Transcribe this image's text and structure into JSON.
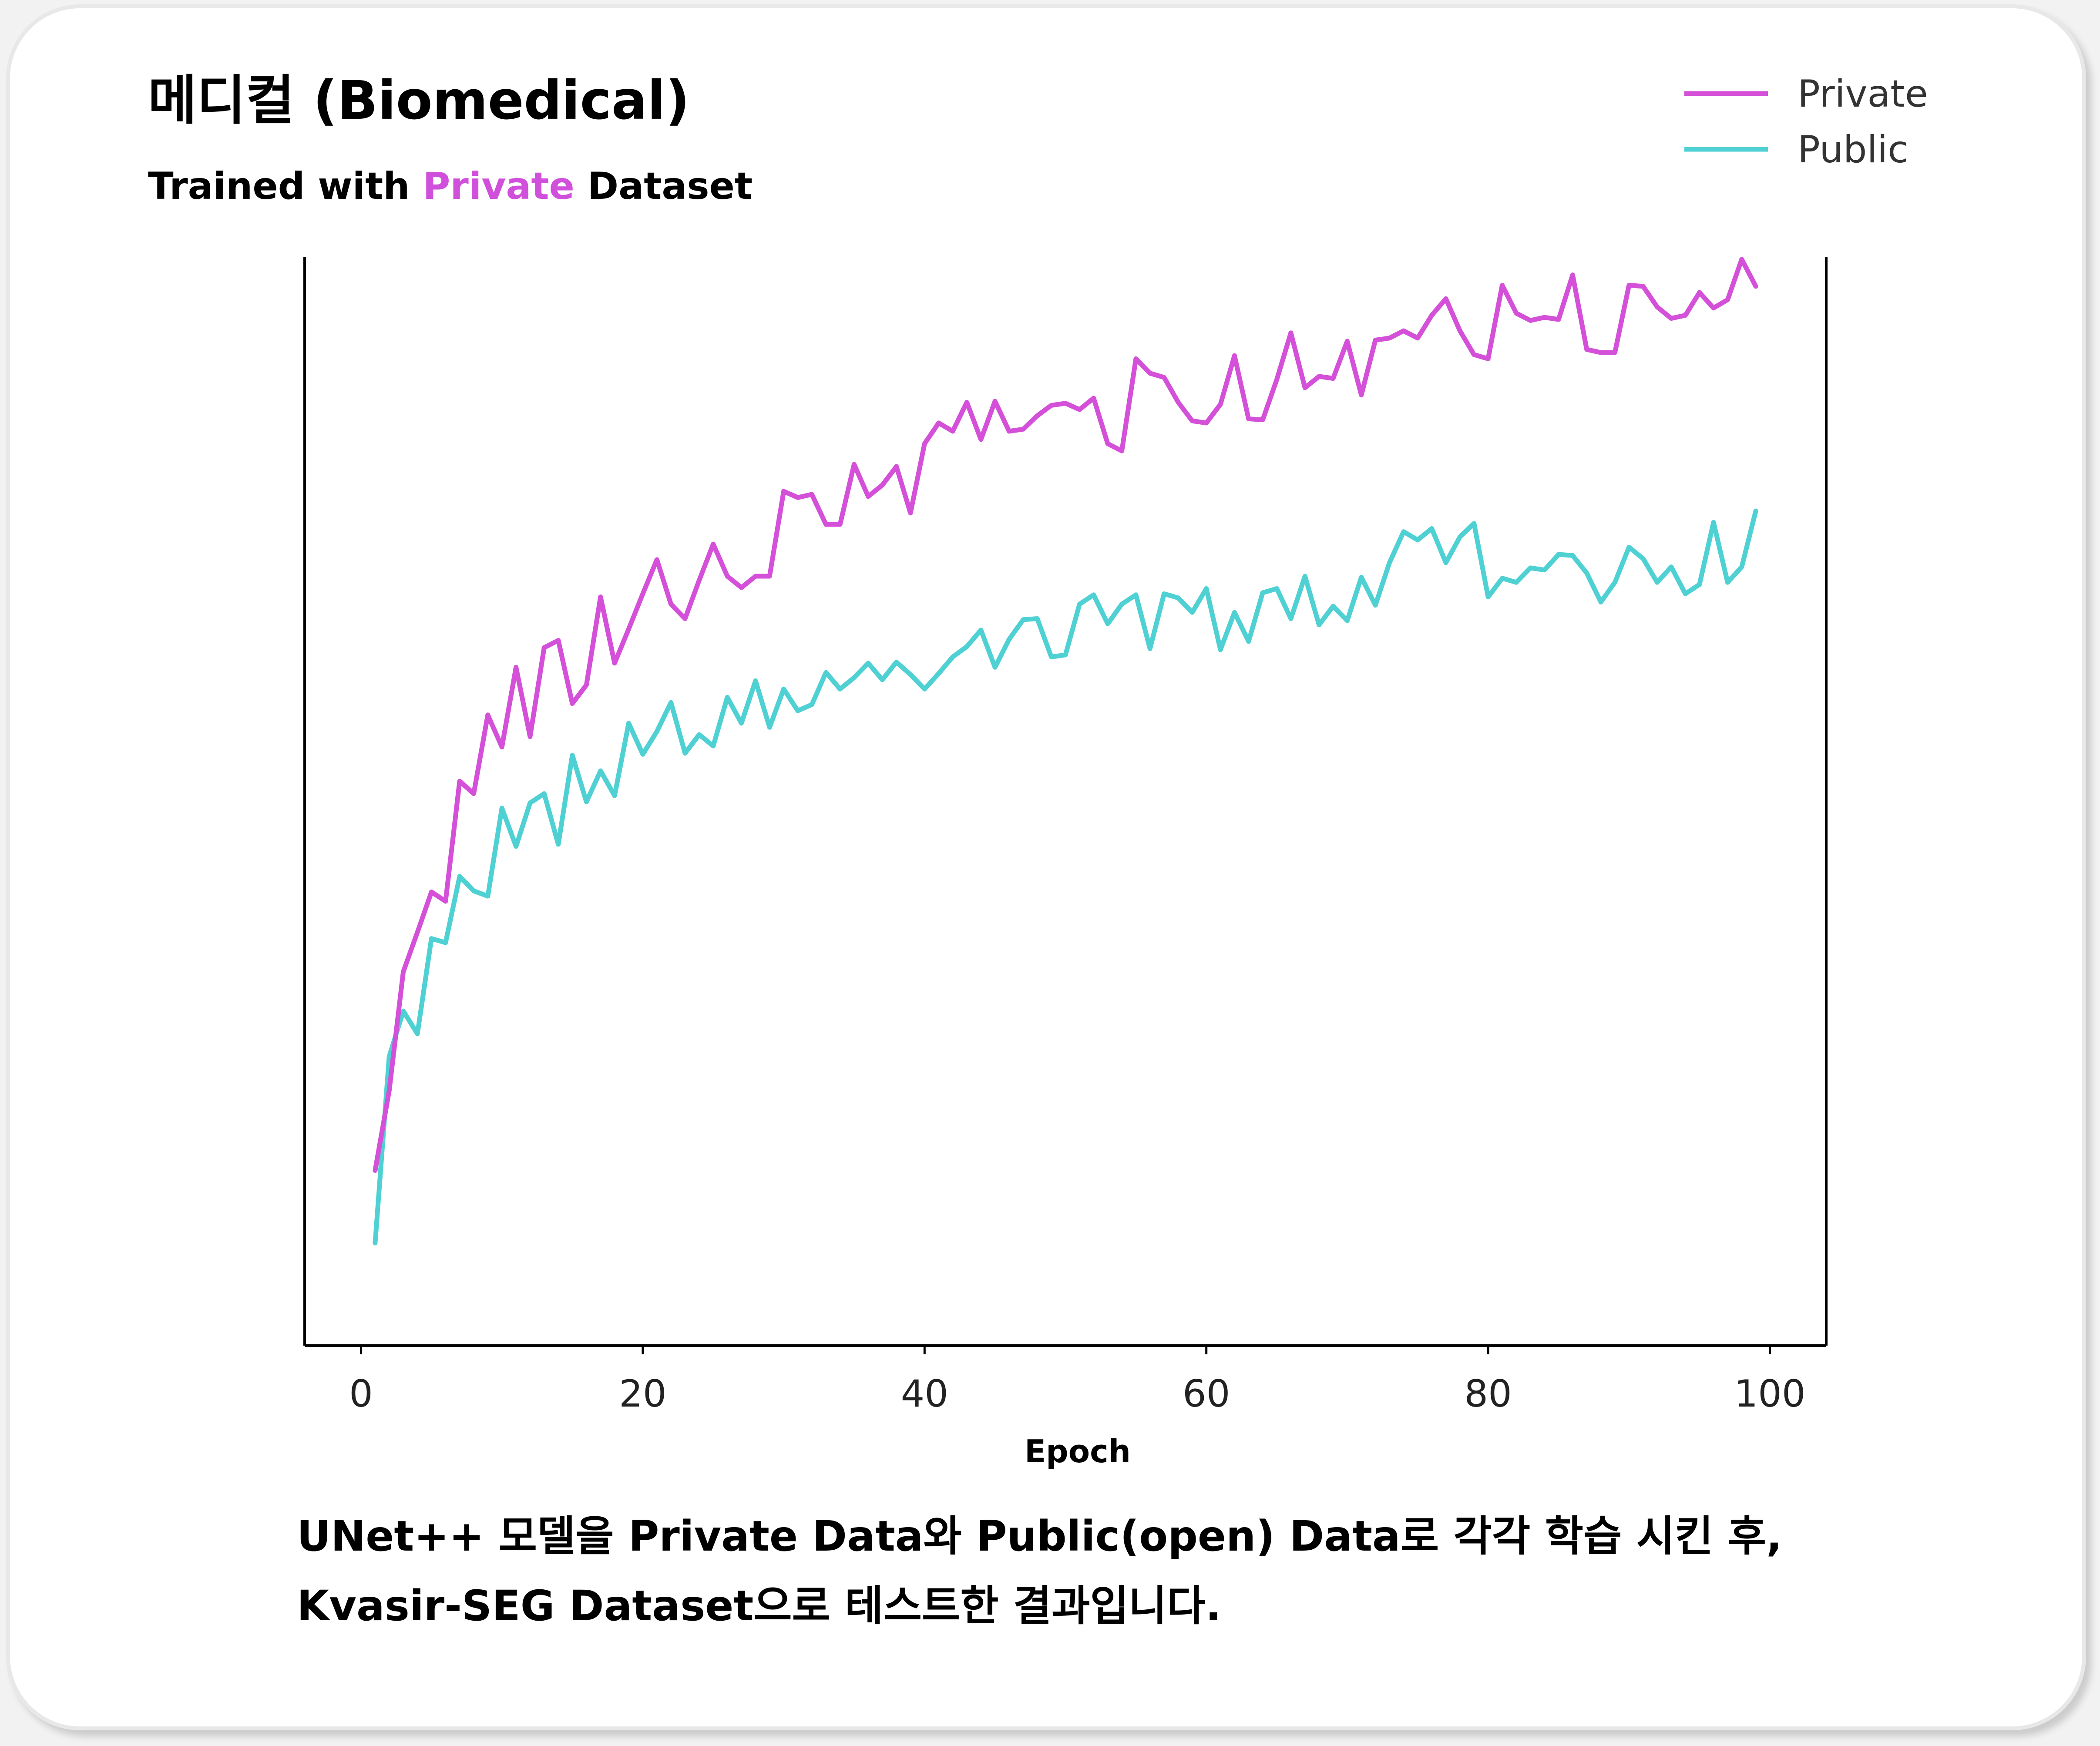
{
  "header": {
    "title": "메디컬 (Biomedical)",
    "subtitle_before": "Trained with ",
    "subtitle_accent": "Private",
    "subtitle_after": " Dataset"
  },
  "caption": {
    "line1": "UNet++ 모델을 Private Data와 Public(open) Data로 각각 학습 시킨 후,",
    "line2": "Kvasir-SEG Dataset으로 테스트한 결과입니다."
  },
  "colors": {
    "private": "#d450d8",
    "public": "#4fd1d4",
    "accent": "#d050dc"
  },
  "chart_data": {
    "type": "line",
    "title": "",
    "xlabel": "Epoch",
    "ylabel": "",
    "xlim": [
      -4,
      104
    ],
    "ylim": [
      0.0,
      1.0
    ],
    "xticks": [
      "0",
      "20",
      "40",
      "60",
      "80",
      "100"
    ],
    "y_tick_labels_shown": false,
    "legend_position": "top-right",
    "x": [
      1,
      2,
      3,
      4,
      5,
      6,
      7,
      8,
      9,
      10,
      11,
      12,
      13,
      14,
      15,
      16,
      17,
      18,
      19,
      20,
      21,
      22,
      23,
      24,
      25,
      26,
      27,
      28,
      29,
      30,
      31,
      32,
      33,
      34,
      35,
      36,
      37,
      38,
      39,
      40,
      41,
      42,
      43,
      44,
      45,
      46,
      47,
      48,
      49,
      50,
      51,
      52,
      53,
      54,
      55,
      56,
      57,
      58,
      59,
      60,
      61,
      62,
      63,
      64,
      65,
      66,
      67,
      68,
      69,
      70,
      71,
      72,
      73,
      74,
      75,
      76,
      77,
      78,
      79,
      80,
      81,
      82,
      83,
      84,
      85,
      86,
      87,
      88,
      89,
      90,
      91,
      92,
      93,
      94,
      95,
      96,
      97,
      98,
      99
    ],
    "series": [
      {
        "name": "Private",
        "values": [
          0.12,
          0.197,
          0.312,
          0.35,
          0.389,
          0.38,
          0.496,
          0.484,
          0.56,
          0.529,
          0.606,
          0.539,
          0.625,
          0.632,
          0.571,
          0.589,
          0.674,
          0.61,
          0.643,
          0.677,
          0.71,
          0.667,
          0.653,
          0.69,
          0.725,
          0.694,
          0.683,
          0.694,
          0.694,
          0.776,
          0.77,
          0.773,
          0.744,
          0.744,
          0.802,
          0.771,
          0.782,
          0.8,
          0.755,
          0.822,
          0.842,
          0.834,
          0.862,
          0.826,
          0.863,
          0.834,
          0.836,
          0.849,
          0.859,
          0.861,
          0.855,
          0.866,
          0.822,
          0.815,
          0.904,
          0.89,
          0.886,
          0.862,
          0.844,
          0.842,
          0.86,
          0.907,
          0.846,
          0.845,
          0.884,
          0.929,
          0.876,
          0.887,
          0.885,
          0.921,
          0.869,
          0.922,
          0.924,
          0.931,
          0.924,
          0.946,
          0.962,
          0.931,
          0.908,
          0.904,
          0.975,
          0.948,
          0.941,
          0.944,
          0.942,
          0.985,
          0.913,
          0.91,
          0.91,
          0.975,
          0.974,
          0.954,
          0.943,
          0.946,
          0.968,
          0.953,
          0.961,
          1.0,
          0.974
        ]
      },
      {
        "name": "Public",
        "values": [
          0.05,
          0.23,
          0.274,
          0.252,
          0.344,
          0.34,
          0.404,
          0.39,
          0.385,
          0.47,
          0.433,
          0.475,
          0.484,
          0.435,
          0.521,
          0.476,
          0.506,
          0.482,
          0.552,
          0.522,
          0.544,
          0.572,
          0.523,
          0.541,
          0.53,
          0.577,
          0.552,
          0.593,
          0.548,
          0.585,
          0.564,
          0.57,
          0.601,
          0.585,
          0.596,
          0.61,
          0.594,
          0.611,
          0.599,
          0.585,
          0.6,
          0.616,
          0.626,
          0.642,
          0.606,
          0.633,
          0.652,
          0.653,
          0.616,
          0.618,
          0.667,
          0.676,
          0.648,
          0.667,
          0.676,
          0.624,
          0.677,
          0.673,
          0.659,
          0.682,
          0.623,
          0.659,
          0.631,
          0.678,
          0.682,
          0.653,
          0.694,
          0.647,
          0.665,
          0.651,
          0.693,
          0.666,
          0.707,
          0.737,
          0.729,
          0.74,
          0.707,
          0.732,
          0.745,
          0.674,
          0.692,
          0.688,
          0.702,
          0.7,
          0.715,
          0.714,
          0.697,
          0.669,
          0.688,
          0.722,
          0.711,
          0.688,
          0.703,
          0.677,
          0.686,
          0.746,
          0.688,
          0.703,
          0.757
        ]
      }
    ]
  }
}
